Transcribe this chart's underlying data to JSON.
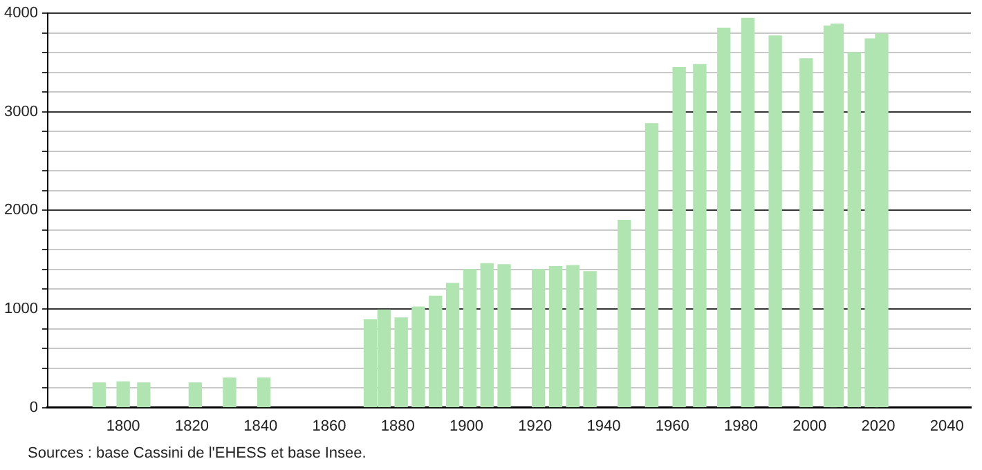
{
  "chart_data": {
    "type": "bar",
    "color": "#b0e4b0",
    "x": [
      1793,
      1800,
      1806,
      1821,
      1831,
      1841,
      1872,
      1876,
      1881,
      1886,
      1891,
      1896,
      1901,
      1906,
      1911,
      1921,
      1926,
      1931,
      1936,
      1946,
      1954,
      1962,
      1968,
      1975,
      1982,
      1990,
      1999,
      2006,
      2008,
      2013,
      2018,
      2021
    ],
    "values": [
      250,
      260,
      250,
      250,
      300,
      300,
      890,
      990,
      910,
      1020,
      1130,
      1260,
      1400,
      1460,
      1450,
      1400,
      1430,
      1440,
      1380,
      1900,
      2880,
      3450,
      3480,
      3850,
      3950,
      3770,
      3540,
      3870,
      3890,
      3600,
      3740,
      3790
    ],
    "xlim": [
      1778,
      2047
    ],
    "xticks": [
      1800,
      1820,
      1840,
      1860,
      1880,
      1900,
      1920,
      1940,
      1960,
      1980,
      2000,
      2020,
      2040
    ],
    "ylim": [
      0,
      4000
    ],
    "yticks": [
      0,
      {
        "value": 200,
        "label": null
      },
      {
        "value": 400,
        "label": null
      },
      {
        "value": 600,
        "label": null
      },
      {
        "value": 800,
        "label": null
      },
      1000,
      {
        "value": 1200,
        "label": null
      },
      {
        "value": 1400,
        "label": null
      },
      {
        "value": 1600,
        "label": null
      },
      {
        "value": 1800,
        "label": null
      },
      2000,
      {
        "value": 2200,
        "label": null
      },
      {
        "value": 2400,
        "label": null
      },
      {
        "value": 2600,
        "label": null
      },
      {
        "value": 2800,
        "label": null
      },
      3000,
      {
        "value": 3200,
        "label": null
      },
      {
        "value": 3400,
        "label": null
      },
      {
        "value": 3600,
        "label": null
      },
      {
        "value": 3800,
        "label": null
      },
      4000
    ],
    "grid": "y",
    "annotations": [
      "Sources : base Cassini de l'EHESS et base Insee."
    ]
  }
}
